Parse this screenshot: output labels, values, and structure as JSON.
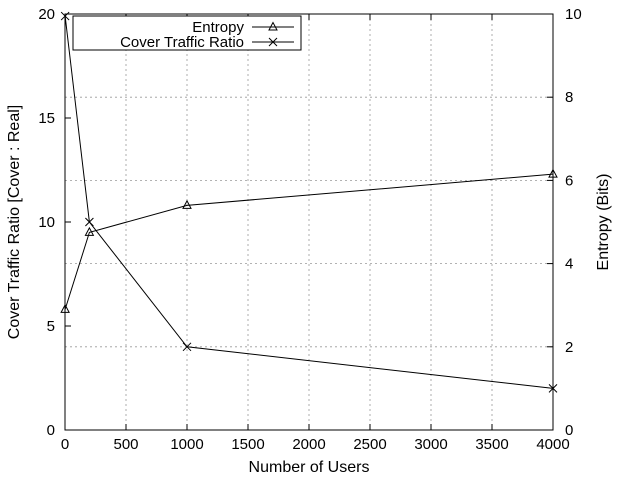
{
  "chart_data": {
    "type": "line",
    "xlabel": "Number of Users",
    "ylabel_left": "Cover Traffic Ratio [Cover : Real]",
    "ylabel_right": "Entropy (Bits)",
    "xlim": [
      0,
      4000
    ],
    "ylim_left": [
      0,
      20
    ],
    "ylim_right": [
      0,
      10
    ],
    "xticks": [
      0,
      500,
      1000,
      1500,
      2000,
      2500,
      3000,
      3500,
      4000
    ],
    "yticks_left": [
      0,
      5,
      10,
      15,
      20
    ],
    "yticks_right": [
      0,
      2,
      4,
      6,
      8,
      10
    ],
    "grid": true,
    "legend_position": "top-left",
    "series": [
      {
        "name": "Entropy",
        "axis": "right",
        "marker": "triangle",
        "x": [
          1,
          200,
          1000,
          4000
        ],
        "y": [
          2.9,
          4.75,
          5.4,
          6.15
        ]
      },
      {
        "name": "Cover Traffic Ratio",
        "axis": "left",
        "marker": "x",
        "x": [
          1,
          200,
          1000,
          4000
        ],
        "y": [
          19.9,
          10,
          4,
          2
        ]
      }
    ]
  }
}
